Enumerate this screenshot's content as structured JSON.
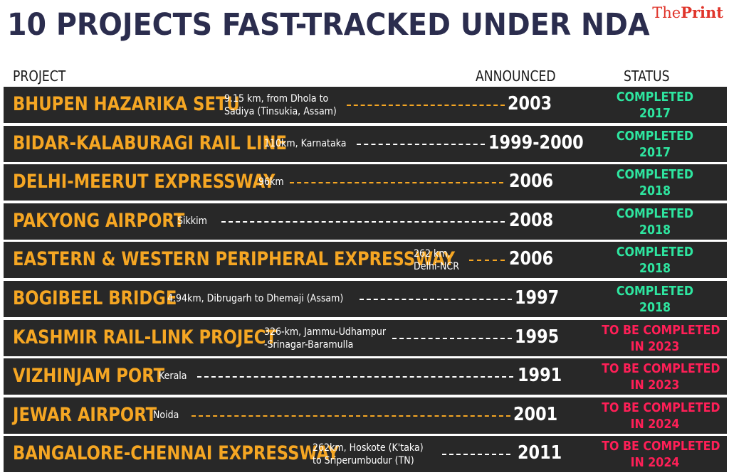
{
  "title": "10 PROJECTS FAST-TRACKED UNDER NDA",
  "logo": {
    "the": "The",
    "print": "Print"
  },
  "headers": {
    "project": "PROJECT",
    "announced": "ANNOUNCED",
    "status": "STATUS"
  },
  "colors": {
    "project_name": "#f5a623",
    "completed": "#2ee6a0",
    "pending": "#ff1f57",
    "row_bg": "#282828",
    "title": "#2b2d4e"
  },
  "rows": [
    {
      "name": "BHUPEN HAZARIKA SETU",
      "detail_line1": "9.15 km, from Dhola to",
      "detail_line2": "Sadiya (Tinsukia, Assam)",
      "announced": "2003",
      "status_line1": "COMPLETED",
      "status_line2": "2017"
    },
    {
      "name": "BIDAR-KALABURAGI RAIL LINE",
      "detail_line1": "110km, Karnataka",
      "detail_line2": "",
      "announced": "1999-2000",
      "status_line1": "COMPLETED",
      "status_line2": "2017"
    },
    {
      "name": "DELHI-MEERUT EXPRESSWAY",
      "detail_line1": "96km",
      "detail_line2": "",
      "announced": "2006",
      "status_line1": "COMPLETED",
      "status_line2": "2018"
    },
    {
      "name": "PAKYONG AIRPORT",
      "detail_line1": "Sikkim",
      "detail_line2": "",
      "announced": "2008",
      "status_line1": "COMPLETED",
      "status_line2": "2018"
    },
    {
      "name": "EASTERN & WESTERN PERIPHERAL EXPRESSWAY",
      "detail_line1": "262 km,",
      "detail_line2": "Delhi-NCR",
      "announced": "2006",
      "status_line1": "COMPLETED",
      "status_line2": "2018"
    },
    {
      "name": "BOGIBEEL BRIDGE",
      "detail_line1": "4.94km, Dibrugarh to Dhemaji (Assam)",
      "detail_line2": "",
      "announced": "1997",
      "status_line1": "COMPLETED",
      "status_line2": "2018"
    },
    {
      "name": "KASHMIR RAIL-LINK PROJECT",
      "detail_line1": "326-km, Jammu-Udhampur",
      "detail_line2": "-Srinagar-Baramulla",
      "announced": "1995",
      "status_line1": "TO BE COMPLETED",
      "status_line2": "IN 2023"
    },
    {
      "name": "VIZHINJAM PORT",
      "detail_line1": "Kerala",
      "detail_line2": "",
      "announced": "1991",
      "status_line1": "TO BE COMPLETED",
      "status_line2": "IN 2023"
    },
    {
      "name": "JEWAR AIRPORT",
      "detail_line1": "Noida",
      "detail_line2": "",
      "announced": "2001",
      "status_line1": "TO BE COMPLETED",
      "status_line2": "IN 2024"
    },
    {
      "name": "BANGALORE-CHENNAI EXPRESSWAY",
      "detail_line1": "262km, Hoskote (K'taka)",
      "detail_line2": "to Sriperumbudur (TN)",
      "announced": "2011",
      "status_line1": "TO BE COMPLETED",
      "status_line2": "IN 2024"
    }
  ]
}
